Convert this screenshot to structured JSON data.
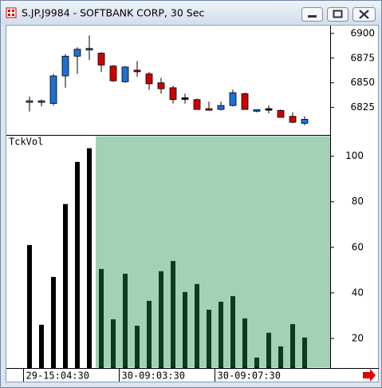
{
  "window": {
    "title": "S.JP.J9984 - SOFTBANK CORP, 30 Sec"
  },
  "chart_data": [
    {
      "type": "candlestick",
      "up_color": "#1f6fd6",
      "down_color": "#cc0000",
      "flat_color": "#000000",
      "open": [
        6830,
        6830,
        6829,
        6857,
        6877,
        6883,
        6880,
        6867,
        6851,
        6862,
        6859,
        6850,
        6845,
        6834,
        6833,
        6823,
        6823,
        6827,
        6839,
        6821,
        6823,
        6822,
        6816,
        6809
      ],
      "high": [
        6836,
        6833,
        6859,
        6879,
        6886,
        6898,
        6881,
        6868,
        6867,
        6872,
        6861,
        6855,
        6847,
        6839,
        6834,
        6831,
        6831,
        6843,
        6840,
        6823,
        6827,
        6823,
        6820,
        6816
      ],
      "low": [
        6821,
        6826,
        6827,
        6845,
        6859,
        6873,
        6861,
        6851,
        6850,
        6856,
        6843,
        6839,
        6829,
        6829,
        6823,
        6822,
        6822,
        6826,
        6823,
        6820,
        6819,
        6815,
        6809,
        6807
      ],
      "close": [
        6831,
        6831,
        6857,
        6877,
        6884,
        6884,
        6868,
        6852,
        6866,
        6861,
        6849,
        6844,
        6833,
        6834,
        6823,
        6822,
        6827,
        6840,
        6823,
        6822,
        6823,
        6815,
        6810,
        6813
      ],
      "ylim": [
        6798,
        6908
      ],
      "yticks": [
        6825,
        6850,
        6875,
        6900
      ]
    },
    {
      "type": "bar",
      "title": "TckVol",
      "color": "#000000",
      "categories": [
        "29-15:04:30",
        null,
        null,
        null,
        null,
        null,
        null,
        null,
        "30-09:03:30",
        null,
        null,
        null,
        null,
        null,
        null,
        null,
        "30-09:07:30",
        null,
        null,
        null,
        null,
        null,
        null,
        null
      ],
      "values": [
        61,
        26,
        47,
        79,
        97.5,
        103.5,
        50.5,
        28.4,
        48.4,
        25.6,
        36.5,
        49.5,
        54,
        40.4,
        43.9,
        32.6,
        36.1,
        38.6,
        28.8,
        11.6,
        22.5,
        16.5,
        26.3,
        20.4
      ],
      "ylim": [
        7,
        109
      ],
      "yticks": [
        20,
        40,
        60,
        80,
        100
      ]
    }
  ]
}
